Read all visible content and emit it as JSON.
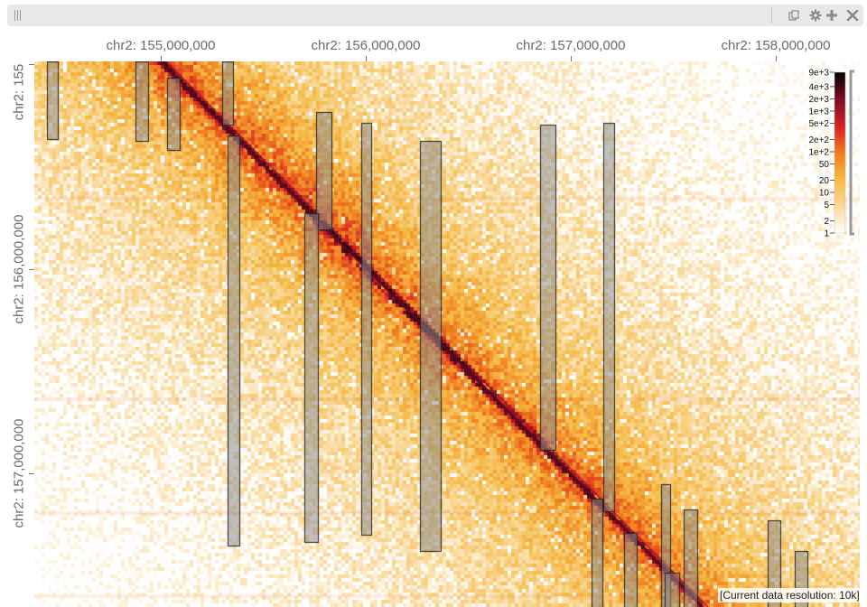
{
  "toolbar": {
    "icons": [
      "drag-handle-icon",
      "copy-icon",
      "gear-icon",
      "plus-icon",
      "close-icon"
    ]
  },
  "axes": {
    "x_labels": [
      "chr2: 155,000,000",
      "chr2: 156,000,000",
      "chr2: 157,000,000",
      "chr2: 158,000,000"
    ],
    "y_labels": [
      "chr2: 155",
      "chr2: 156,000,000",
      "chr2: 157,000,000"
    ],
    "view_start_mb": 154.42,
    "view_end_mb": 158.44
  },
  "legend": {
    "ticks": [
      "9e+3",
      "4e+3",
      "2e+3",
      "1e+3",
      "5e+2",
      "2e+2",
      "1e+2",
      "50",
      "20",
      "10",
      "5",
      "2",
      "1"
    ],
    "tick_values": [
      9000,
      4000,
      2000,
      1000,
      500,
      200,
      100,
      50,
      20,
      10,
      5,
      2,
      1
    ],
    "max": 9000,
    "min": 1,
    "colors": [
      "#ffffff",
      "#f9d99a",
      "#f5b944",
      "#f07b1e",
      "#d81f23",
      "#7a0c28",
      "#000000"
    ]
  },
  "tads": [
    {
      "start": 154.46,
      "end": 154.52
    },
    {
      "start": 154.89,
      "end": 154.95
    },
    {
      "start": 155.04,
      "end": 155.1
    },
    {
      "start": 155.72,
      "end": 155.79
    },
    {
      "start": 155.98,
      "end": 156.03
    },
    {
      "start": 156.27,
      "end": 156.37
    },
    {
      "start": 156.85,
      "end": 156.92
    },
    {
      "start": 157.16,
      "end": 157.21
    },
    {
      "start": 155.76,
      "end": 155.83
    },
    {
      "start": 155.34,
      "end": 155.4
    },
    {
      "start": 155.51,
      "end": 155.57
    }
  ],
  "status": {
    "resolution_text": "[Current data resolution: 10k]"
  }
}
